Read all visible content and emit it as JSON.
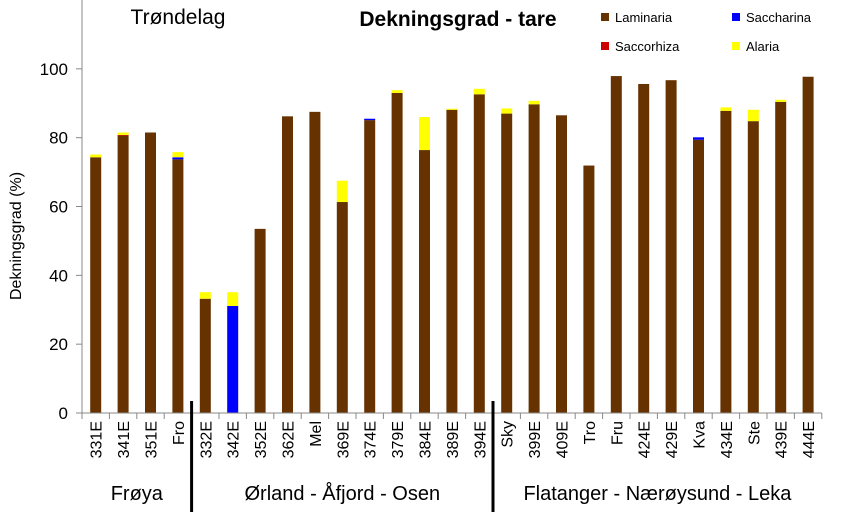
{
  "chart_data": {
    "type": "bar",
    "stacked": true,
    "title": "Dekningsgrad - tare",
    "region_label": "Trøndelag",
    "ylabel": "Dekningsgrad  (%)",
    "xlabel": "",
    "ylim": [
      0,
      120
    ],
    "yticks": [
      0,
      20,
      40,
      60,
      80,
      100
    ],
    "grid": false,
    "legend_position": "top-right",
    "categories": [
      "331E",
      "341E",
      "351E",
      "Fro",
      "332E",
      "342E",
      "352E",
      "362E",
      "Mel",
      "369E",
      "374E",
      "379E",
      "384E",
      "389E",
      "394E",
      "Sky",
      "399E",
      "409E",
      "Tro",
      "Fru",
      "424E",
      "429E",
      "Kva",
      "434E",
      "Ste",
      "439E",
      "444E"
    ],
    "groups": [
      {
        "label": "Frøya",
        "count": 4
      },
      {
        "label": "Ørland - Åfjord - Osen",
        "count": 11
      },
      {
        "label": "Flatanger - Nærøysund - Leka",
        "count": 12
      }
    ],
    "series": [
      {
        "name": "Laminaria",
        "color": "#663300",
        "values": [
          74.3,
          80.6,
          81.5,
          73.7,
          33.2,
          0,
          53.5,
          86.2,
          87.5,
          61.3,
          85.1,
          93.0,
          76.4,
          88.1,
          92.6,
          87.0,
          89.7,
          86.5,
          71.9,
          97.9,
          95.6,
          96.7,
          79.4,
          87.8,
          84.8,
          90.4,
          97.7
        ]
      },
      {
        "name": "Saccharina",
        "color": "#0000FF",
        "values": [
          0,
          0,
          0,
          0.6,
          0,
          31.1,
          0,
          0,
          0,
          0,
          0.4,
          0,
          0,
          0,
          0,
          0,
          0,
          0,
          0,
          0,
          0,
          0,
          0.7,
          0,
          0,
          0,
          0
        ]
      },
      {
        "name": "Saccorhiza",
        "color": "#CC0000",
        "values": [
          0,
          0.2,
          0,
          0,
          0,
          0,
          0,
          0,
          0,
          0,
          0,
          0,
          0,
          0,
          0,
          0,
          0,
          0,
          0,
          0,
          0,
          0,
          0,
          0,
          0,
          0,
          0
        ]
      },
      {
        "name": "Alaria",
        "color": "#FFFF00",
        "values": [
          0.8,
          0.7,
          0,
          1.5,
          1.9,
          4.0,
          0,
          0,
          0,
          6.2,
          0,
          0.8,
          9.6,
          0.3,
          1.6,
          1.5,
          1.0,
          0,
          0,
          0,
          0,
          0,
          0,
          1.0,
          3.3,
          0.6,
          0
        ]
      }
    ]
  }
}
